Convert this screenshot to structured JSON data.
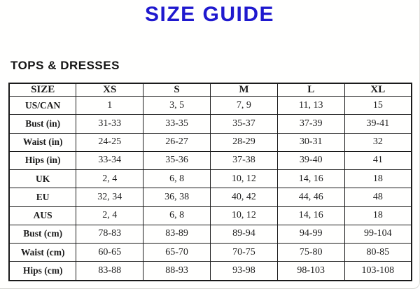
{
  "page": {
    "title": "SIZE GUIDE",
    "title_color": "#1f19ce",
    "section_heading": "TOPS & DRESSES"
  },
  "table": {
    "columns": [
      "SIZE",
      "XS",
      "S",
      "M",
      "L",
      "XL"
    ],
    "rows": [
      {
        "label": "US/CAN",
        "values": [
          "1",
          "3, 5",
          "7, 9",
          "11, 13",
          "15"
        ]
      },
      {
        "label": "Bust (in)",
        "values": [
          "31-33",
          "33-35",
          "35-37",
          "37-39",
          "39-41"
        ]
      },
      {
        "label": "Waist (in)",
        "values": [
          "24-25",
          "26-27",
          "28-29",
          "30-31",
          "32"
        ]
      },
      {
        "label": "Hips (in)",
        "values": [
          "33-34",
          "35-36",
          "37-38",
          "39-40",
          "41"
        ]
      },
      {
        "label": "UK",
        "values": [
          "2, 4",
          "6, 8",
          "10, 12",
          "14, 16",
          "18"
        ]
      },
      {
        "label": "EU",
        "values": [
          "32, 34",
          "36, 38",
          "40, 42",
          "44, 46",
          "48"
        ]
      },
      {
        "label": "AUS",
        "values": [
          "2, 4",
          "6, 8",
          "10, 12",
          "14, 16",
          "18"
        ]
      },
      {
        "label": "Bust (cm)",
        "values": [
          "78-83",
          "83-89",
          "89-94",
          "94-99",
          "99-104"
        ]
      },
      {
        "label": "Waist (cm)",
        "values": [
          "60-65",
          "65-70",
          "70-75",
          "75-80",
          "80-85"
        ]
      },
      {
        "label": "Hips (cm)",
        "values": [
          "83-88",
          "88-93",
          "93-98",
          "98-103",
          "103-108"
        ]
      }
    ]
  }
}
